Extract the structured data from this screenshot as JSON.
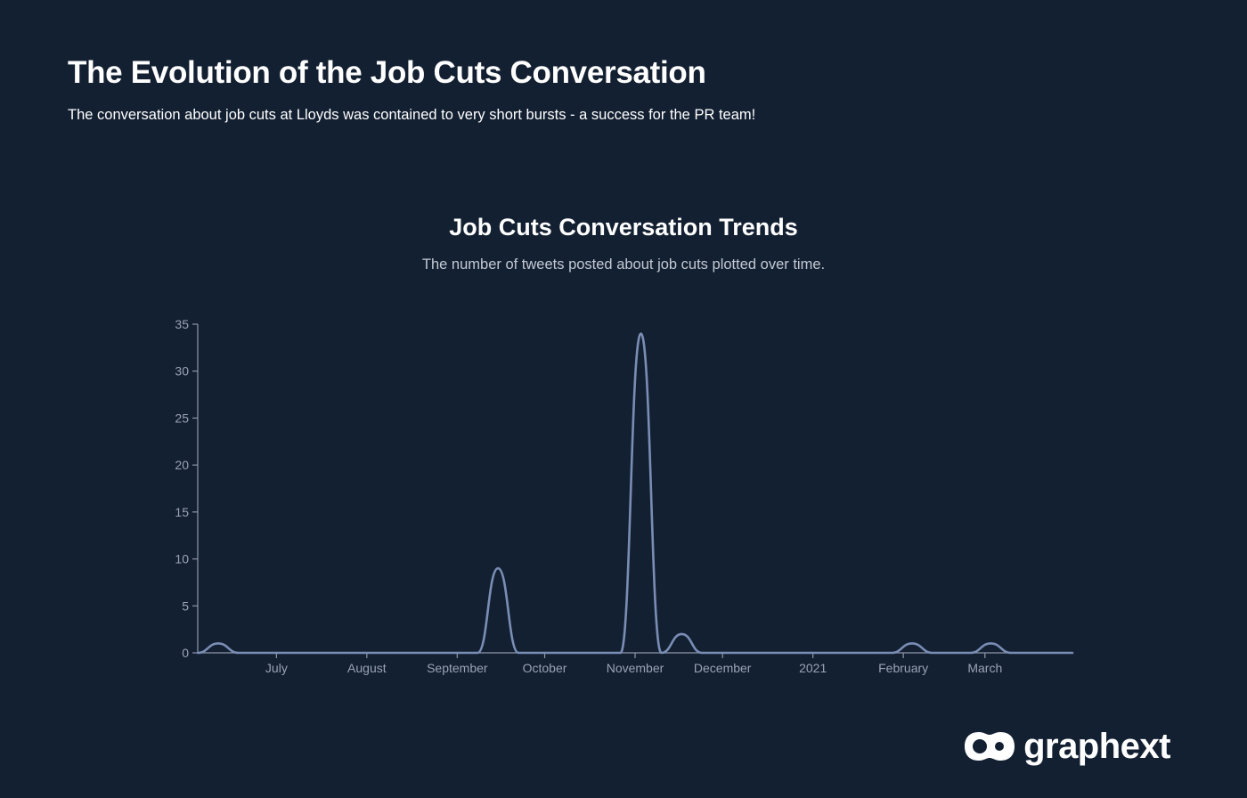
{
  "header": {
    "title": "The Evolution of the Job Cuts Conversation",
    "subtitle": "The conversation about job cuts at Lloyds was contained to very short bursts - a success for the PR team!"
  },
  "brand": {
    "name": "graphext",
    "icon": "graphext-logo-icon"
  },
  "colors": {
    "background": "#132032",
    "line": "#7a8db4",
    "axis": "#8e97a8"
  },
  "chart_data": {
    "type": "line",
    "title": "Job Cuts Conversation Trends",
    "subtitle": "The number of tweets posted about job cuts plotted over time.",
    "xlabel": "",
    "ylabel": "",
    "ylim": [
      0,
      35
    ],
    "yticks": [
      0,
      5,
      10,
      15,
      20,
      25,
      30,
      35
    ],
    "xlim": [
      "2020-06-04",
      "2021-03-31"
    ],
    "xticks": [
      {
        "date": "2020-07-01",
        "label": "July"
      },
      {
        "date": "2020-08-01",
        "label": "August"
      },
      {
        "date": "2020-09-01",
        "label": "September"
      },
      {
        "date": "2020-10-01",
        "label": "October"
      },
      {
        "date": "2020-11-01",
        "label": "November"
      },
      {
        "date": "2020-12-01",
        "label": "December"
      },
      {
        "date": "2021-01-01",
        "label": "2021"
      },
      {
        "date": "2021-02-01",
        "label": "February"
      },
      {
        "date": "2021-03-01",
        "label": "March"
      }
    ],
    "grid": false,
    "series": [
      {
        "points": [
          {
            "x": "2020-06-04",
            "y": 0
          },
          {
            "x": "2020-06-11",
            "y": 1
          },
          {
            "x": "2020-06-18",
            "y": 0
          },
          {
            "x": "2020-09-01",
            "y": 0
          },
          {
            "x": "2020-09-08",
            "y": 0
          },
          {
            "x": "2020-09-15",
            "y": 9
          },
          {
            "x": "2020-09-22",
            "y": 0
          },
          {
            "x": "2020-10-27",
            "y": 0
          },
          {
            "x": "2020-11-03",
            "y": 34
          },
          {
            "x": "2020-11-10",
            "y": 0
          },
          {
            "x": "2020-11-17",
            "y": 2
          },
          {
            "x": "2020-11-24",
            "y": 0
          },
          {
            "x": "2021-01-28",
            "y": 0
          },
          {
            "x": "2021-02-04",
            "y": 1
          },
          {
            "x": "2021-02-11",
            "y": 0
          },
          {
            "x": "2021-02-24",
            "y": 0
          },
          {
            "x": "2021-03-03",
            "y": 1
          },
          {
            "x": "2021-03-10",
            "y": 0
          },
          {
            "x": "2021-03-31",
            "y": 0
          }
        ]
      }
    ]
  }
}
